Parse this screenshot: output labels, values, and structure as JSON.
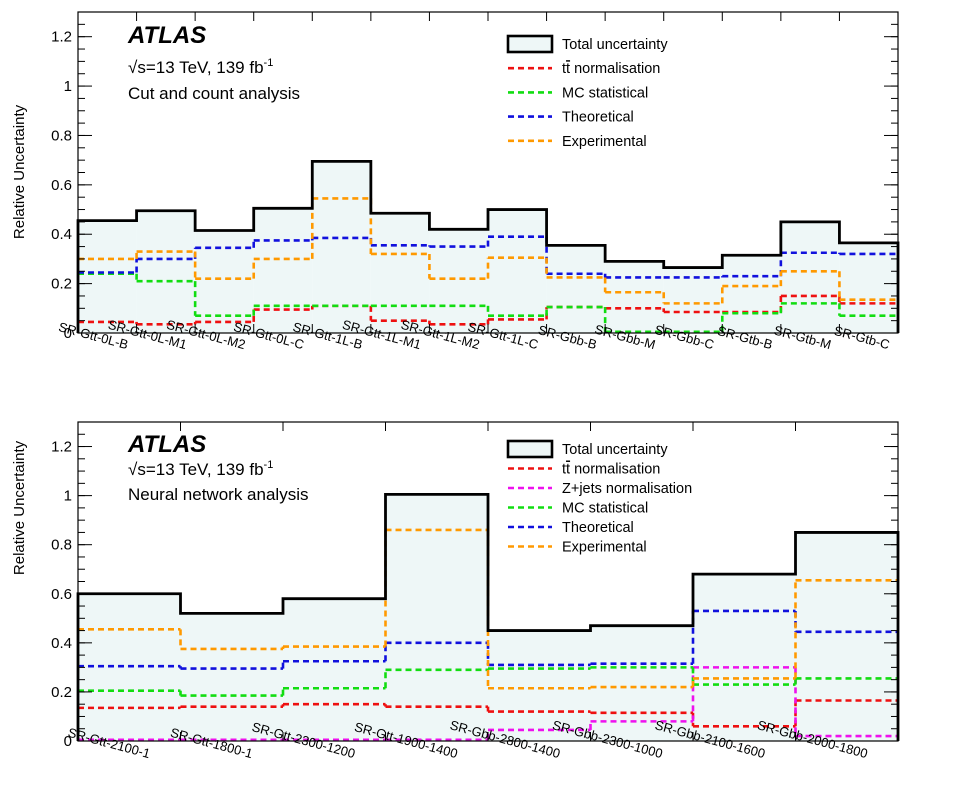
{
  "chart_data": [
    {
      "type": "step",
      "ylabel": "Relative Uncertainty",
      "ylim": [
        0,
        1.3
      ],
      "yticks": [
        0,
        0.2,
        0.4,
        0.6,
        0.8,
        1,
        1.2
      ],
      "ytick_labels": [
        "0",
        "0.2",
        "0.4",
        "0.6",
        "0.8",
        "1",
        "1.2"
      ],
      "annotations": {
        "experiment": "ATLAS",
        "energy_prefix": "√s=13 TeV, 139 fb",
        "energy_superscript": "-1",
        "analysis": "Cut and count analysis"
      },
      "legend_position": "top-right",
      "categories": [
        "SR-Gtt-0L-B",
        "SR-Gtt-0L-M1",
        "SR-Gtt-0L-M2",
        "SR-Gtt-0L-C",
        "SR-Gtt-1L-B",
        "SR-Gtt-1L-M1",
        "SR-Gtt-1L-M2",
        "SR-Gtt-1L-C",
        "SR-Gbb-B",
        "SR-Gbb-M",
        "SR-Gbb-C",
        "SR-Gtb-B",
        "SR-Gtb-M",
        "SR-Gtb-C"
      ],
      "series": [
        {
          "name": "Total uncertainty",
          "style": "filled",
          "color": "#000000",
          "fill": "#eef7f7",
          "values": [
            0.455,
            0.495,
            0.415,
            0.505,
            0.695,
            0.485,
            0.42,
            0.5,
            0.355,
            0.29,
            0.265,
            0.315,
            0.45,
            0.365
          ]
        },
        {
          "name_prefix": "t",
          "name_bar": "t",
          "name_suffix": " normalisation",
          "style": "dashed",
          "color": "#ee1111",
          "values": [
            0.045,
            0.035,
            0.045,
            0.095,
            0.11,
            0.05,
            0.035,
            0.055,
            0.105,
            0.1,
            0.085,
            0.085,
            0.15,
            0.12
          ]
        },
        {
          "name": "MC statistical",
          "style": "dashed",
          "color": "#11dd11",
          "values": [
            0.24,
            0.21,
            0.07,
            0.11,
            0.11,
            0.11,
            0.11,
            0.07,
            0.105,
            0.005,
            0.005,
            0.08,
            0.12,
            0.07
          ]
        },
        {
          "name": "Theoretical",
          "style": "dashed",
          "color": "#1111dd",
          "values": [
            0.245,
            0.3,
            0.345,
            0.375,
            0.385,
            0.355,
            0.35,
            0.39,
            0.24,
            0.225,
            0.225,
            0.23,
            0.325,
            0.32
          ]
        },
        {
          "name": "Experimental",
          "style": "dashed",
          "color": "#ff9900",
          "values": [
            0.3,
            0.33,
            0.22,
            0.3,
            0.545,
            0.32,
            0.22,
            0.305,
            0.225,
            0.165,
            0.12,
            0.19,
            0.25,
            0.135
          ]
        }
      ]
    },
    {
      "type": "step",
      "ylabel": "Relative Uncertainty",
      "ylim": [
        0,
        1.3
      ],
      "yticks": [
        0,
        0.2,
        0.4,
        0.6,
        0.8,
        1,
        1.2
      ],
      "ytick_labels": [
        "0",
        "0.2",
        "0.4",
        "0.6",
        "0.8",
        "1",
        "1.2"
      ],
      "annotations": {
        "experiment": "ATLAS",
        "energy_prefix": "√s=13 TeV, 139 fb",
        "energy_superscript": "-1",
        "analysis": "Neural network analysis"
      },
      "legend_position": "top-right",
      "categories": [
        "SR-Gtt-2100-1",
        "SR-Gtt-1800-1",
        "SR-Gtt-2300-1200",
        "SR-Gtt-1900-1400",
        "SR-Gbb-2800-1400",
        "SR-Gbb-2300-1000",
        "SR-Gbb-2100-1600",
        "SR-Gbb-2000-1800"
      ],
      "series": [
        {
          "name": "Total uncertainty",
          "style": "filled",
          "color": "#000000",
          "fill": "#eef7f7",
          "values": [
            0.6,
            0.52,
            0.58,
            1.005,
            0.45,
            0.47,
            0.68,
            0.85
          ]
        },
        {
          "name_prefix": "t",
          "name_bar": "t",
          "name_suffix": " normalisation",
          "style": "dashed",
          "color": "#ee1111",
          "values": [
            0.135,
            0.14,
            0.15,
            0.14,
            0.12,
            0.115,
            0.06,
            0.165
          ]
        },
        {
          "name": "Z+jets normalisation",
          "style": "dashed",
          "color": "#ee11ee",
          "values": [
            0.005,
            0.005,
            0.005,
            0.005,
            0.045,
            0.08,
            0.3,
            0.02
          ]
        },
        {
          "name": "MC statistical",
          "style": "dashed",
          "color": "#11dd11",
          "values": [
            0.205,
            0.185,
            0.215,
            0.29,
            0.295,
            0.3,
            0.23,
            0.255
          ]
        },
        {
          "name": "Theoretical",
          "style": "dashed",
          "color": "#1111dd",
          "values": [
            0.305,
            0.295,
            0.325,
            0.4,
            0.31,
            0.315,
            0.53,
            0.445
          ]
        },
        {
          "name": "Experimental",
          "style": "dashed",
          "color": "#ff9900",
          "values": [
            0.455,
            0.375,
            0.385,
            0.86,
            0.215,
            0.22,
            0.255,
            0.655
          ]
        }
      ]
    }
  ]
}
